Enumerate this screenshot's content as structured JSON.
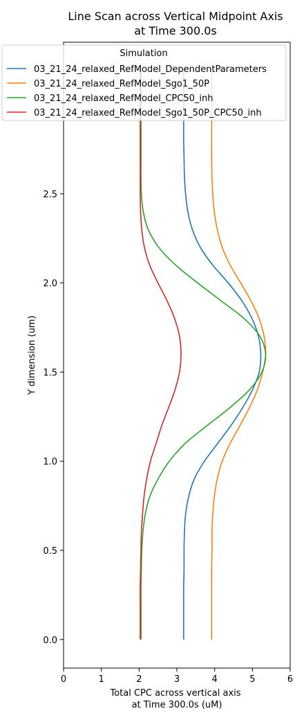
{
  "chart_data": {
    "type": "line",
    "title_line1": "Line Scan across Vertical Midpoint Axis",
    "title_line2": "at Time 300.0s",
    "xlabel_line1": "Total CPC across vertical axis",
    "xlabel_line2": "at Time 300.0s (uM)",
    "ylabel": "Y dimension (um)",
    "xlim": [
      0,
      6
    ],
    "ylim": [
      -0.16,
      3.35
    ],
    "x_ticks": [
      0,
      1,
      2,
      3,
      4,
      5,
      6
    ],
    "y_ticks": [
      0.0,
      0.5,
      1.0,
      1.5,
      2.0,
      2.5
    ],
    "x_tick_labels": [
      "0",
      "1",
      "2",
      "3",
      "4",
      "5",
      "6"
    ],
    "y_tick_labels": [
      "0.0",
      "0.5",
      "1.0",
      "1.5",
      "2.0",
      "2.5"
    ],
    "grid": false,
    "legend": {
      "title": "Simulation",
      "placement": "top-left",
      "entries": [
        "03_21_24_relaxed_RefModel_DependentParameters",
        "03_21_24_relaxed_RefModel_Sgo1_50P",
        "03_21_24_relaxed_RefModel_CPC50_inh",
        "03_21_24_relaxed_RefModel_Sgo1_50P_CPC50_inh"
      ]
    },
    "series": [
      {
        "name": "03_21_24_relaxed_RefModel_DependentParameters",
        "color": "#1f77b4",
        "y": [
          0.0,
          0.1,
          0.2,
          0.3,
          0.4,
          0.5,
          0.6,
          0.7,
          0.8,
          0.9,
          1.0,
          1.1,
          1.2,
          1.3,
          1.4,
          1.5,
          1.6,
          1.7,
          1.8,
          1.9,
          2.0,
          2.1,
          2.2,
          2.3,
          2.4,
          2.5,
          2.6,
          2.7,
          2.8,
          2.9,
          3.0,
          3.1,
          3.2
        ],
        "x": [
          3.18,
          3.18,
          3.18,
          3.18,
          3.19,
          3.19,
          3.2,
          3.23,
          3.31,
          3.46,
          3.73,
          4.08,
          4.43,
          4.74,
          5.0,
          5.18,
          5.22,
          5.16,
          4.99,
          4.72,
          4.36,
          3.95,
          3.62,
          3.41,
          3.29,
          3.23,
          3.2,
          3.19,
          3.18,
          3.18,
          3.18,
          3.18,
          3.18
        ]
      },
      {
        "name": "03_21_24_relaxed_RefModel_Sgo1_50P",
        "color": "#ff7f0e",
        "y": [
          0.0,
          0.1,
          0.2,
          0.3,
          0.4,
          0.5,
          0.6,
          0.7,
          0.8,
          0.9,
          1.0,
          1.1,
          1.2,
          1.3,
          1.4,
          1.5,
          1.6,
          1.7,
          1.8,
          1.9,
          2.0,
          2.1,
          2.2,
          2.3,
          2.4,
          2.5,
          2.6,
          2.7,
          2.8,
          2.9,
          3.0,
          3.1,
          3.2
        ],
        "x": [
          3.92,
          3.92,
          3.92,
          3.92,
          3.92,
          3.93,
          3.93,
          3.95,
          3.99,
          4.07,
          4.2,
          4.41,
          4.67,
          4.92,
          5.13,
          5.27,
          5.35,
          5.31,
          5.18,
          4.96,
          4.69,
          4.41,
          4.2,
          4.07,
          3.99,
          3.95,
          3.93,
          3.92,
          3.92,
          3.92,
          3.92,
          3.92,
          3.92
        ]
      },
      {
        "name": "03_21_24_relaxed_RefModel_CPC50_inh",
        "color": "#2ca02c",
        "y": [
          0.0,
          0.1,
          0.2,
          0.3,
          0.4,
          0.5,
          0.6,
          0.7,
          0.8,
          0.9,
          1.0,
          1.1,
          1.2,
          1.3,
          1.4,
          1.5,
          1.6,
          1.7,
          1.8,
          1.9,
          2.0,
          2.1,
          2.2,
          2.3,
          2.4,
          2.5,
          2.6,
          2.7,
          2.8,
          2.9,
          3.0,
          3.1,
          3.2
        ],
        "x": [
          2.05,
          2.05,
          2.05,
          2.05,
          2.06,
          2.07,
          2.1,
          2.16,
          2.28,
          2.5,
          2.8,
          3.22,
          3.8,
          4.4,
          4.92,
          5.25,
          5.35,
          5.2,
          4.78,
          4.17,
          3.55,
          2.97,
          2.52,
          2.24,
          2.11,
          2.06,
          2.05,
          2.05,
          2.05,
          2.05,
          2.05,
          2.05,
          2.05
        ]
      },
      {
        "name": "03_21_24_relaxed_RefModel_Sgo1_50P_CPC50_inh",
        "color": "#d62728",
        "y": [
          0.0,
          0.1,
          0.2,
          0.3,
          0.4,
          0.5,
          0.6,
          0.7,
          0.8,
          0.9,
          1.0,
          1.1,
          1.2,
          1.3,
          1.4,
          1.5,
          1.6,
          1.7,
          1.8,
          1.9,
          2.0,
          2.1,
          2.2,
          2.3,
          2.4,
          2.5,
          2.6,
          2.7,
          2.8,
          2.9,
          3.0,
          3.1,
          3.2
        ],
        "x": [
          2.03,
          2.03,
          2.03,
          2.03,
          2.04,
          2.05,
          2.06,
          2.09,
          2.13,
          2.2,
          2.3,
          2.45,
          2.6,
          2.78,
          2.95,
          3.07,
          3.11,
          3.07,
          2.94,
          2.74,
          2.5,
          2.28,
          2.14,
          2.07,
          2.04,
          2.03,
          2.03,
          2.03,
          2.03,
          2.03,
          2.03,
          2.03,
          2.03
        ]
      }
    ]
  }
}
